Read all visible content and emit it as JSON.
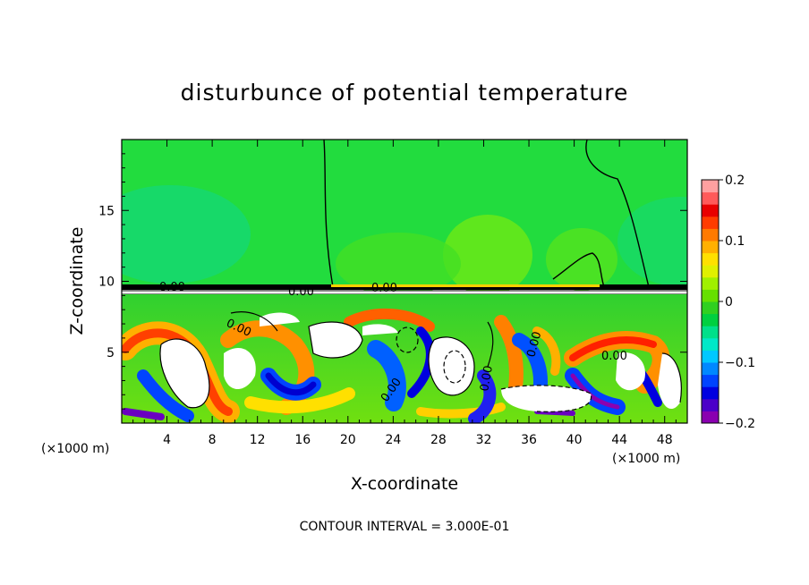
{
  "chart_data": {
    "type": "heatmap",
    "title": "disturbunce of potential temperature",
    "xlabel": "X-coordinate",
    "ylabel": "Z-coordinate",
    "x_units": "(×1000 m)",
    "x_units_right": "(×1000 m)",
    "xlim": [
      0,
      50
    ],
    "ylim": [
      0,
      20
    ],
    "xticks": [
      4,
      8,
      12,
      16,
      20,
      24,
      28,
      32,
      36,
      40,
      44,
      48
    ],
    "yticks": [
      5,
      10,
      15
    ],
    "colorbar": {
      "range": [
        -0.2,
        0.2
      ],
      "ticks": [
        {
          "value": 0.2,
          "label": "0.2"
        },
        {
          "value": 0.1,
          "label": "0.1"
        },
        {
          "value": 0,
          "label": "0"
        },
        {
          "value": -0.1,
          "label": "−0.1"
        },
        {
          "value": -0.2,
          "label": "−0.2"
        }
      ],
      "colors": [
        "#8a00b0",
        "#4b00c8",
        "#0000e0",
        "#0044ff",
        "#0088ff",
        "#00c8ff",
        "#00e8c8",
        "#00e08a",
        "#00d040",
        "#30d020",
        "#66e000",
        "#a0f000",
        "#e0f000",
        "#ffe000",
        "#ffb000",
        "#ff7a00",
        "#ff3c00",
        "#e80000",
        "#ff5a5a",
        "#ffa0a0"
      ]
    },
    "contour_labels": [
      "0.00"
    ],
    "annotation": "CONTOUR INTERVAL = 3.000E-01",
    "upper_layer_value_approx": 0.0,
    "interface_height": 9.6,
    "grid": false
  }
}
